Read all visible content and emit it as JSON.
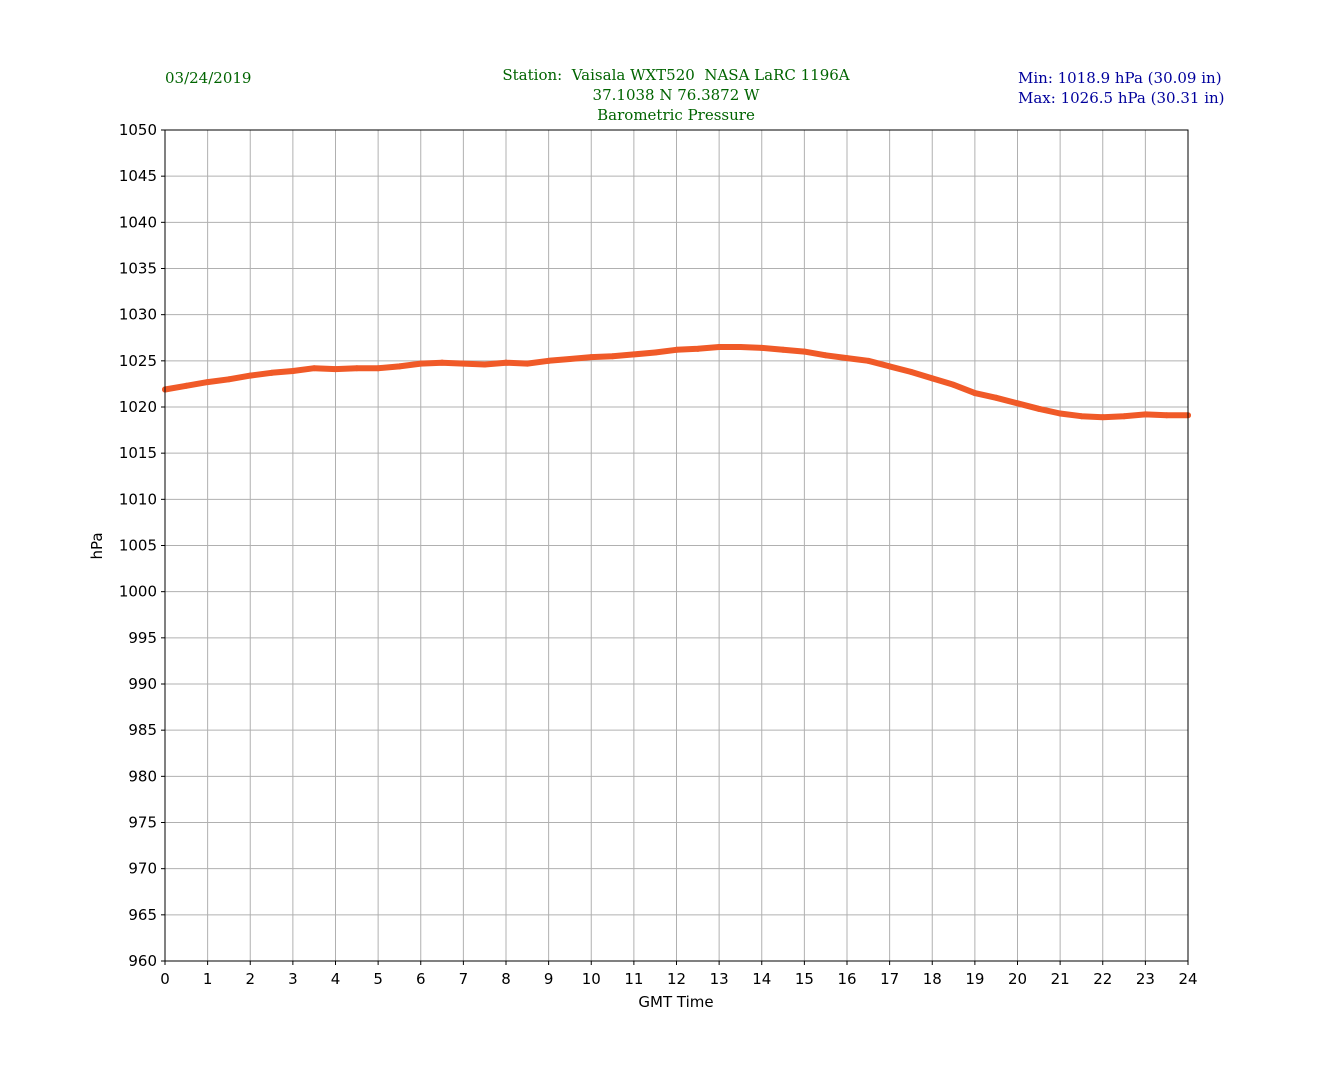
{
  "header": {
    "date": "03/24/2019",
    "station": "Station:  Vaisala WXT520  NASA LaRC 1196A",
    "coords": "37.1038 N 76.3872 W",
    "parameter": "Barometric Pressure",
    "min": "Min: 1018.9 hPa (30.09 in)",
    "max": "Max: 1026.5 hPa (30.31 in)"
  },
  "chart_data": {
    "type": "line",
    "title": "Barometric Pressure",
    "xlabel": "GMT Time",
    "ylabel": "hPa",
    "xlim": [
      0,
      24
    ],
    "ylim": [
      960,
      1050
    ],
    "xticks": [
      0,
      1,
      2,
      3,
      4,
      5,
      6,
      7,
      8,
      9,
      10,
      11,
      12,
      13,
      14,
      15,
      16,
      17,
      18,
      19,
      20,
      21,
      22,
      23,
      24
    ],
    "yticks": [
      960,
      965,
      970,
      975,
      980,
      985,
      990,
      995,
      1000,
      1005,
      1010,
      1015,
      1020,
      1025,
      1030,
      1035,
      1040,
      1045,
      1050
    ],
    "grid": true,
    "series": [
      {
        "name": "Barometric Pressure",
        "color": "#f05a28",
        "x": [
          0,
          0.5,
          1,
          1.5,
          2,
          2.5,
          3,
          3.5,
          4,
          4.5,
          5,
          5.5,
          6,
          6.5,
          7,
          7.5,
          8,
          8.5,
          9,
          9.5,
          10,
          10.5,
          11,
          11.5,
          12,
          12.5,
          13,
          13.5,
          14,
          14.5,
          15,
          15.5,
          16,
          16.5,
          17,
          17.5,
          18,
          18.5,
          19,
          19.5,
          20,
          20.5,
          21,
          21.5,
          22,
          22.5,
          23,
          23.5,
          24
        ],
        "values": [
          1021.9,
          1022.3,
          1022.7,
          1023.0,
          1023.4,
          1023.7,
          1023.9,
          1024.2,
          1024.1,
          1024.2,
          1024.2,
          1024.4,
          1024.7,
          1024.8,
          1024.7,
          1024.6,
          1024.8,
          1024.7,
          1025.0,
          1025.2,
          1025.4,
          1025.5,
          1025.7,
          1025.9,
          1026.2,
          1026.3,
          1026.5,
          1026.5,
          1026.4,
          1026.2,
          1026.0,
          1025.6,
          1025.3,
          1025.0,
          1024.4,
          1023.8,
          1023.1,
          1022.4,
          1021.5,
          1021.0,
          1020.4,
          1019.8,
          1019.3,
          1019.0,
          1018.9,
          1019.0,
          1019.2,
          1019.1,
          1019.1
        ]
      }
    ]
  }
}
